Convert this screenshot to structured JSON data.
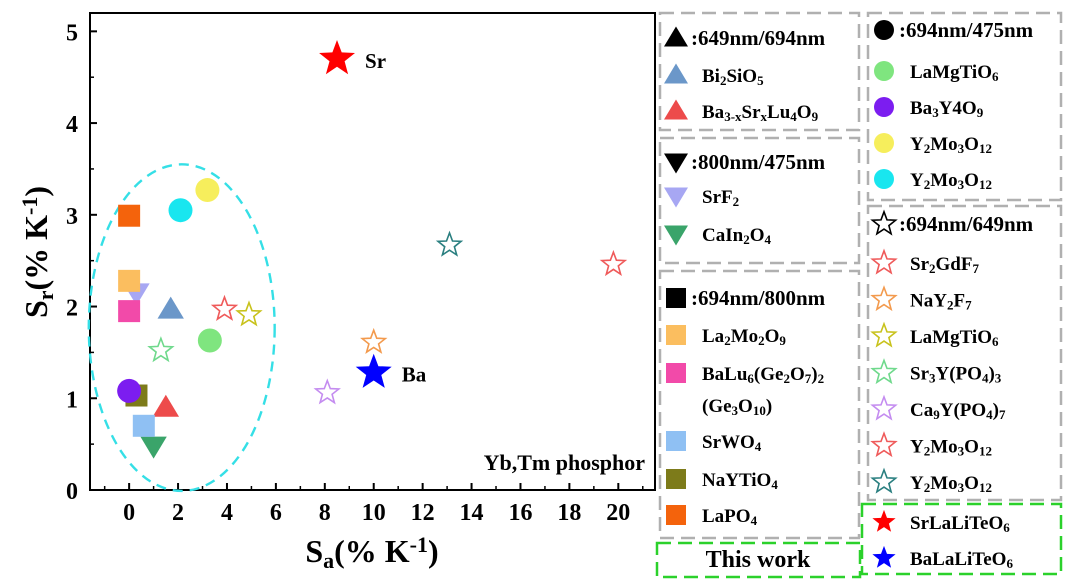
{
  "chart_data": {
    "type": "scatter",
    "xlim": [
      -1.6,
      21.5
    ],
    "ylim": [
      0,
      5.2
    ],
    "x_ticks": [
      "0",
      "2",
      "4",
      "6",
      "8",
      "10",
      "12",
      "14",
      "16",
      "18",
      "20"
    ],
    "y_ticks": [
      "0",
      "1",
      "2",
      "3",
      "4",
      "5"
    ],
    "xlabel": {
      "main": "S",
      "sub": "a",
      "rest": "(% K",
      "sup": "-1",
      "close": ")"
    },
    "ylabel": {
      "main": "S",
      "sub": "r",
      "rest": "(% K",
      "sup": "-1",
      "close": ")"
    },
    "annotation": "Yb,Tm phosphor",
    "grid": false,
    "legend_position": "right",
    "group_marker_colors": {
      "outline": "#000000"
    },
    "series": [
      {
        "name": [
          [
            "Bi",
            ""
          ],
          [
            "2",
            "sub"
          ],
          [
            "SiO",
            ""
          ],
          [
            "5",
            "sub"
          ]
        ],
        "group": 0,
        "marker": "triangle-up",
        "color": "#6b97c9",
        "filled": true,
        "x": [
          1.7
        ],
        "y": [
          1.97
        ]
      },
      {
        "name": [
          [
            "Ba",
            ""
          ],
          [
            "3-x",
            "sub"
          ],
          [
            "Sr",
            ""
          ],
          [
            "x",
            "sub"
          ],
          [
            "Lu",
            ""
          ],
          [
            "4",
            "sub"
          ],
          [
            "O",
            ""
          ],
          [
            "9",
            "sub"
          ]
        ],
        "group": 0,
        "marker": "triangle-up",
        "color": "#ed4b4b",
        "filled": true,
        "x": [
          1.5
        ],
        "y": [
          0.9
        ]
      },
      {
        "name": [
          [
            "SrF",
            ""
          ],
          [
            "2",
            "sub"
          ]
        ],
        "group": 1,
        "marker": "triangle-down",
        "color": "#a7a7f3",
        "filled": true,
        "x": [
          0.3
        ],
        "y": [
          2.15
        ]
      },
      {
        "name": [
          [
            "CaIn",
            ""
          ],
          [
            "2",
            "sub"
          ],
          [
            "O",
            ""
          ],
          [
            "4",
            "sub"
          ]
        ],
        "group": 1,
        "marker": "triangle-down",
        "color": "#3aa46a",
        "filled": true,
        "x": [
          1.0
        ],
        "y": [
          0.48
        ]
      },
      {
        "name": [
          [
            "La",
            ""
          ],
          [
            "2",
            "sub"
          ],
          [
            "Mo",
            ""
          ],
          [
            "2",
            "sub"
          ],
          [
            "O",
            ""
          ],
          [
            "9",
            "sub"
          ]
        ],
        "group": 2,
        "marker": "square",
        "color": "#fbbe5f",
        "filled": true,
        "x": [
          0.0
        ],
        "y": [
          2.28
        ]
      },
      {
        "name": [
          [
            "BaLu",
            ""
          ],
          [
            "6",
            "sub"
          ],
          [
            "(Ge",
            ""
          ],
          [
            "2",
            "sub"
          ],
          [
            "O",
            ""
          ],
          [
            "7",
            "sub"
          ],
          [
            ")",
            ""
          ],
          [
            "2",
            "sub"
          ]
        ],
        "name2": [
          [
            "(Ge",
            ""
          ],
          [
            "3",
            "sub"
          ],
          [
            "O",
            ""
          ],
          [
            "10",
            "sub"
          ],
          [
            ")",
            ""
          ]
        ],
        "group": 2,
        "marker": "square",
        "color": "#f24aa9",
        "filled": true,
        "x": [
          0.0
        ],
        "y": [
          1.95
        ]
      },
      {
        "name": [
          [
            "SrWO",
            ""
          ],
          [
            "4",
            "sub"
          ]
        ],
        "group": 2,
        "marker": "square",
        "color": "#8fc0f3",
        "filled": true,
        "x": [
          0.6
        ],
        "y": [
          0.7
        ]
      },
      {
        "name": [
          [
            "NaYTiO",
            ""
          ],
          [
            "4",
            "sub"
          ]
        ],
        "group": 2,
        "marker": "square",
        "color": "#7d7b1a",
        "filled": true,
        "x": [
          0.3
        ],
        "y": [
          1.03
        ]
      },
      {
        "name": [
          [
            "LaPO",
            ""
          ],
          [
            "4",
            "sub"
          ]
        ],
        "group": 2,
        "marker": "square",
        "color": "#f4630c",
        "filled": true,
        "x": [
          0.0
        ],
        "y": [
          2.99
        ]
      },
      {
        "name": [
          [
            "LaMgTiO",
            ""
          ],
          [
            "6",
            "sub"
          ]
        ],
        "group": 3,
        "marker": "circle",
        "color": "#7fe57f",
        "filled": true,
        "x": [
          3.3
        ],
        "y": [
          1.63
        ]
      },
      {
        "name": [
          [
            "Ba",
            ""
          ],
          [
            "3",
            "sub"
          ],
          [
            "Y4O",
            ""
          ],
          [
            "9",
            "sub"
          ]
        ],
        "group": 3,
        "marker": "circle",
        "color": "#7c1df0",
        "filled": true,
        "x": [
          0.0
        ],
        "y": [
          1.08
        ]
      },
      {
        "name": [
          [
            "Y",
            ""
          ],
          [
            "2",
            "sub"
          ],
          [
            "Mo",
            ""
          ],
          [
            "3",
            "sub"
          ],
          [
            "O",
            ""
          ],
          [
            "12",
            "sub"
          ]
        ],
        "group": 3,
        "marker": "circle",
        "color": "#f6ee5c",
        "filled": true,
        "x": [
          3.2
        ],
        "y": [
          3.27
        ]
      },
      {
        "name": [
          [
            "Y",
            ""
          ],
          [
            "2",
            "sub"
          ],
          [
            "Mo",
            ""
          ],
          [
            "3",
            "sub"
          ],
          [
            "O",
            ""
          ],
          [
            "12",
            "sub"
          ]
        ],
        "group": 3,
        "marker": "circle",
        "color": "#19e6ef",
        "filled": true,
        "x": [
          2.1
        ],
        "y": [
          3.05
        ]
      },
      {
        "name": [
          [
            "Sr",
            ""
          ],
          [
            "2",
            "sub"
          ],
          [
            "GdF",
            ""
          ],
          [
            "7",
            "sub"
          ]
        ],
        "group": 4,
        "marker": "star",
        "color": "#ef5a5a",
        "filled": false,
        "x": [
          3.9
        ],
        "y": [
          1.97
        ]
      },
      {
        "name": [
          [
            "NaY",
            ""
          ],
          [
            "2",
            "sub"
          ],
          [
            "F",
            ""
          ],
          [
            "7",
            "sub"
          ]
        ],
        "group": 4,
        "marker": "star",
        "color": "#f39a4d",
        "filled": false,
        "x": [
          10.0
        ],
        "y": [
          1.61
        ]
      },
      {
        "name": [
          [
            "LaMgTiO",
            ""
          ],
          [
            "6",
            "sub"
          ]
        ],
        "group": 4,
        "marker": "star",
        "color": "#c8c21c",
        "filled": false,
        "x": [
          4.9
        ],
        "y": [
          1.91
        ]
      },
      {
        "name": [
          [
            "Sr",
            ""
          ],
          [
            "3",
            "sub"
          ],
          [
            "Y(PO",
            ""
          ],
          [
            "4",
            "sub"
          ],
          [
            ")",
            ""
          ],
          [
            "3",
            "sub"
          ]
        ],
        "group": 4,
        "marker": "star",
        "color": "#6fd98c",
        "filled": false,
        "x": [
          1.3
        ],
        "y": [
          1.52
        ]
      },
      {
        "name": [
          [
            "Ca",
            ""
          ],
          [
            "9",
            "sub"
          ],
          [
            "Y(PO",
            ""
          ],
          [
            "4",
            "sub"
          ],
          [
            ")",
            ""
          ],
          [
            "7",
            "sub"
          ]
        ],
        "group": 4,
        "marker": "star",
        "color": "#c48cf0",
        "filled": false,
        "x": [
          8.1
        ],
        "y": [
          1.06
        ]
      },
      {
        "name": [
          [
            "Y",
            ""
          ],
          [
            "2",
            "sub"
          ],
          [
            "Mo",
            ""
          ],
          [
            "3",
            "sub"
          ],
          [
            "O",
            ""
          ],
          [
            "12",
            "sub"
          ]
        ],
        "group": 4,
        "marker": "star",
        "color": "#ef5a5a",
        "filled": false,
        "x": [
          19.8
        ],
        "y": [
          2.46
        ]
      },
      {
        "name": [
          [
            "Y",
            ""
          ],
          [
            "2",
            "sub"
          ],
          [
            "Mo",
            ""
          ],
          [
            "3",
            "sub"
          ],
          [
            "O",
            ""
          ],
          [
            "12",
            "sub"
          ]
        ],
        "group": 4,
        "marker": "star",
        "color": "#2a7f80",
        "filled": false,
        "x": [
          13.1
        ],
        "y": [
          2.67
        ]
      },
      {
        "name": [
          [
            "SrLaLiTeO",
            ""
          ],
          [
            "6",
            "sub"
          ]
        ],
        "group": 5,
        "marker": "star",
        "color": "#ff0000",
        "filled": true,
        "x": [
          8.5
        ],
        "y": [
          4.7
        ],
        "point_label": "Sr"
      },
      {
        "name": [
          [
            "BaLaLiTeO",
            ""
          ],
          [
            "6",
            "sub"
          ]
        ],
        "group": 5,
        "marker": "star",
        "color": "#0000ff",
        "filled": true,
        "x": [
          10.0
        ],
        "y": [
          1.28
        ],
        "point_label": "Ba"
      }
    ],
    "legend_groups": [
      {
        "header": ":649nm/694nm",
        "marker": "triangle-up"
      },
      {
        "header": ":800nm/475nm",
        "marker": "triangle-down"
      },
      {
        "header": ":694nm/800nm",
        "marker": "square"
      },
      {
        "header": ":694nm/475nm",
        "marker": "circle"
      },
      {
        "header": ":694nm/649nm",
        "marker": "star-open"
      },
      {
        "header": "This work",
        "marker": "none"
      }
    ],
    "ellipse": {
      "cx": 2.15,
      "cy": 1.77,
      "rx": 3.8,
      "ry": 1.78,
      "color": "#35dfe6"
    }
  }
}
